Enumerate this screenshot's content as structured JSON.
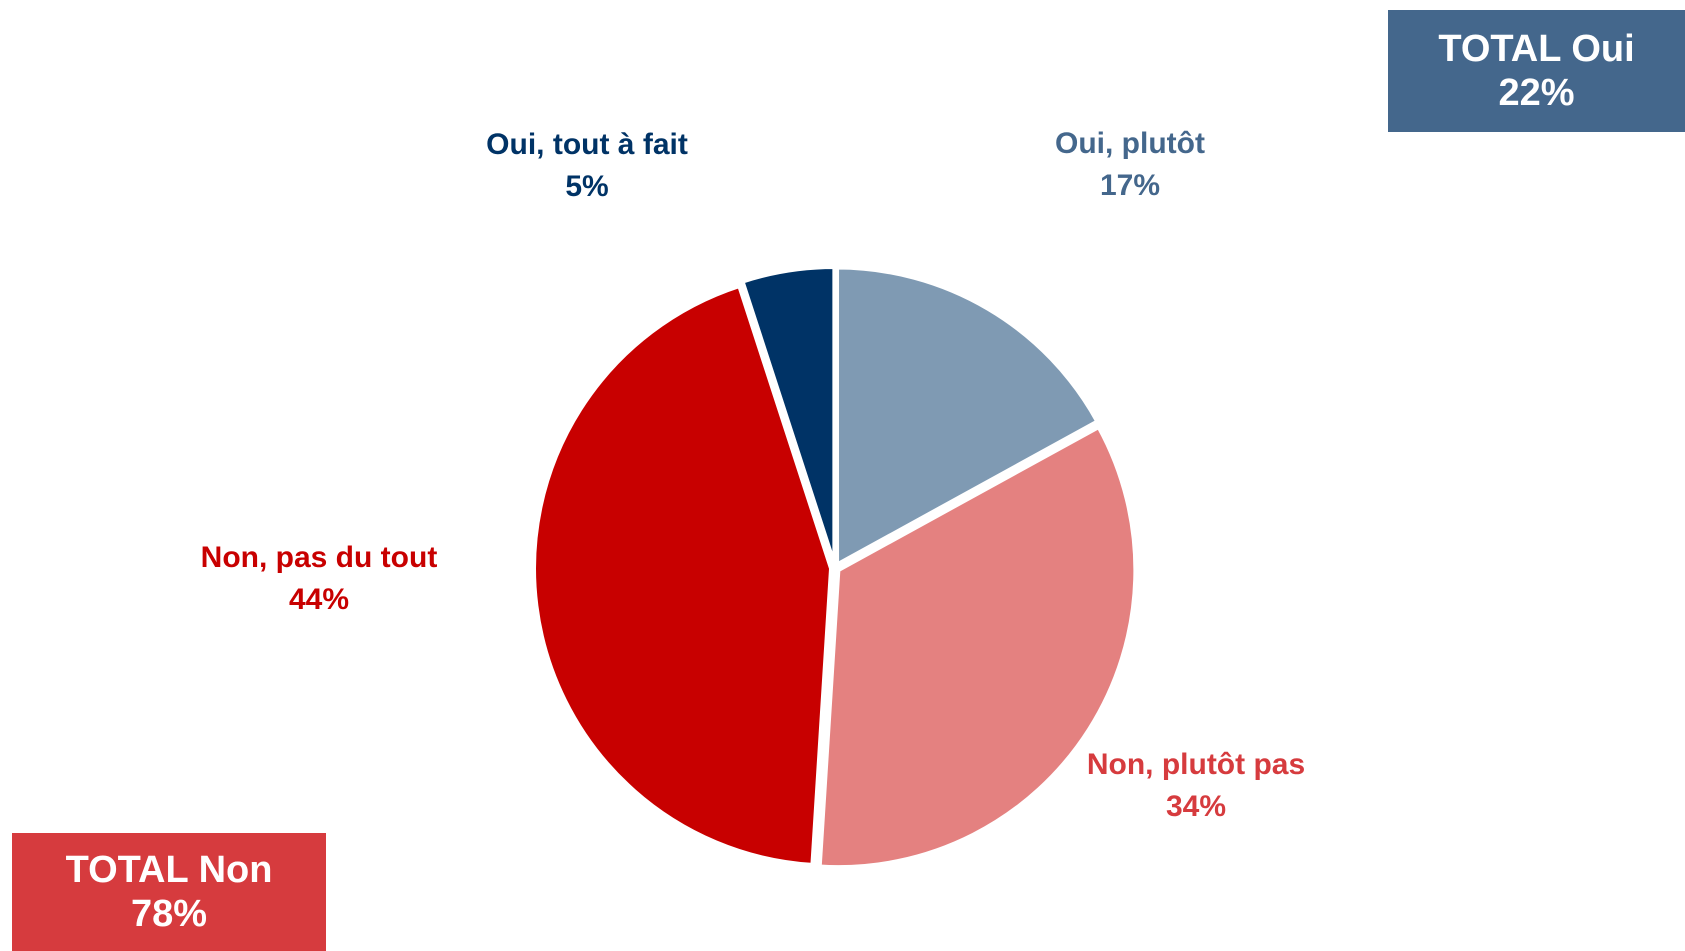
{
  "chart_data": {
    "type": "pie",
    "title": "",
    "start_angle_deg": 0,
    "direction": "clockwise",
    "slices": [
      {
        "label": "Oui, plutôt",
        "value": 17,
        "value_label": "17%",
        "color": "#7f9ab3",
        "label_color": "#44678c"
      },
      {
        "label": "Non, plutôt pas",
        "value": 34,
        "value_label": "34%",
        "color": "#e48180",
        "label_color": "#d63b3e"
      },
      {
        "label": "Non, pas du tout",
        "value": 44,
        "value_label": "44%",
        "color": "#c80000",
        "label_color": "#c80000"
      },
      {
        "label": "Oui, tout à fait",
        "value": 5,
        "value_label": "5%",
        "color": "#003366",
        "label_color": "#003366"
      }
    ]
  },
  "totals": {
    "oui": {
      "label": "TOTAL Oui",
      "value": "22%",
      "color": "#44678c"
    },
    "non": {
      "label": "TOTAL Non",
      "value": "78%",
      "color": "#d63b3e"
    }
  }
}
